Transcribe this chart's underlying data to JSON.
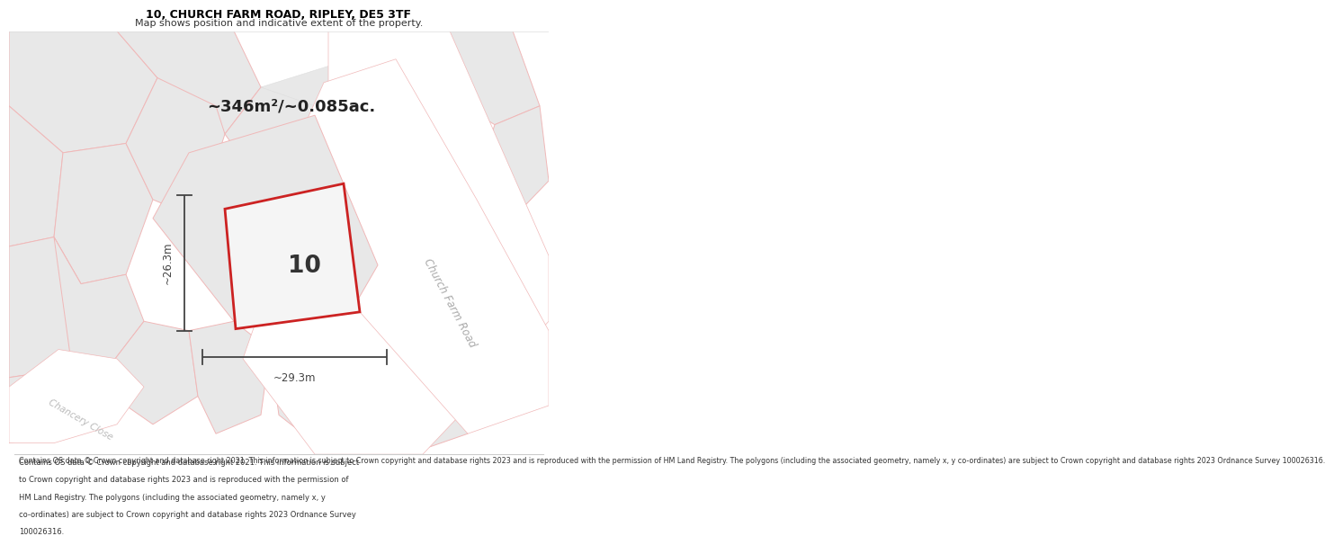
{
  "title": "10, CHURCH FARM ROAD, RIPLEY, DE5 3TF",
  "subtitle": "Map shows position and indicative extent of the property.",
  "area_text": "~346m²/~0.085ac.",
  "label_number": "10",
  "dim_width": "~29.3m",
  "dim_height": "~26.3m",
  "road_label_1": "Church Farm Road",
  "road_label_2": "Chancery Close",
  "footer": "Contains OS data © Crown copyright and database right 2021. This information is subject to Crown copyright and database rights 2023 and is reproduced with the permission of HM Land Registry. The polygons (including the associated geometry, namely x, y co-ordinates) are subject to Crown copyright and database rights 2023 Ordnance Survey 100026316.",
  "bg_color": "#ffffff",
  "map_bg": "#f7f6f6",
  "plot_fill": "#e8e8e8",
  "plot_fill_main": "#eeeeee",
  "plot_stroke": "#cc2222",
  "road_fill": "#f0eeee",
  "road_stroke": "#f0b8b8",
  "dim_color": "#444444",
  "text_color": "#333333",
  "title_color": "#000000",
  "road_label_color": "#aaaaaa",
  "chancery_color": "#bbbbbb"
}
